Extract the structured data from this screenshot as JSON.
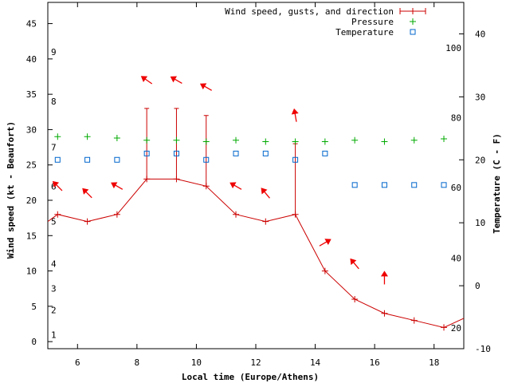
{
  "chart_data": {
    "type": "line",
    "xlabel": "Local time (Europe/Athens)",
    "ylabel_left": "Wind speed (kt - Beaufort)",
    "ylabel_right": "Temperature (C - F)",
    "xlim": [
      5,
      19
    ],
    "ylim_left": [
      -1,
      48
    ],
    "ylim_right": [
      -10,
      45
    ],
    "x_ticks": [
      6,
      8,
      10,
      12,
      14,
      16,
      18
    ],
    "y_ticks_left": [
      0,
      5,
      10,
      15,
      20,
      25,
      30,
      35,
      40,
      45
    ],
    "y_ticks_right": [
      -10,
      0,
      10,
      20,
      30,
      40
    ],
    "beaufort_labels": [
      {
        "label": "1",
        "kt": 1
      },
      {
        "label": "2",
        "kt": 4.5
      },
      {
        "label": "3",
        "kt": 7.5
      },
      {
        "label": "4",
        "kt": 11
      },
      {
        "label": "5",
        "kt": 17
      },
      {
        "label": "6",
        "kt": 22
      },
      {
        "label": "7",
        "kt": 27.5
      },
      {
        "label": "8",
        "kt": 34
      },
      {
        "label": "9",
        "kt": 41
      }
    ],
    "fahrenheit_labels": [
      {
        "label": "20",
        "c": -6.7
      },
      {
        "label": "40",
        "c": 4.4
      },
      {
        "label": "60",
        "c": 15.6
      },
      {
        "label": "80",
        "c": 26.7
      },
      {
        "label": "100",
        "c": 37.8
      }
    ],
    "legend": [
      "Wind speed, gusts, and direction",
      "Pressure",
      "Temperature"
    ],
    "legend_position": "top-right",
    "series": [
      {
        "name": "Wind speed, gusts, and direction",
        "color": "#cc0000",
        "x": [
          5,
          5.33,
          6.33,
          7.33,
          8.33,
          9.33,
          10.33,
          11.33,
          12.33,
          13.33,
          14.33,
          15.33,
          16.33,
          17.33,
          18.33,
          19
        ],
        "values": [
          17,
          18,
          17,
          18,
          23,
          23,
          22,
          18,
          17,
          18,
          10,
          6,
          4,
          3,
          2,
          3.3
        ],
        "gusts": [
          null,
          null,
          null,
          null,
          33,
          33,
          32,
          null,
          null,
          28,
          null,
          null,
          null,
          null,
          null,
          null
        ]
      },
      {
        "name": "Pressure",
        "color": "#00aa00",
        "x": [
          5.33,
          6.33,
          7.33,
          8.33,
          9.33,
          10.33,
          11.33,
          12.33,
          13.33,
          14.33,
          15.33,
          16.33,
          17.33,
          18.33
        ],
        "values": [
          29,
          29,
          28.8,
          28.5,
          28.5,
          28.3,
          28.5,
          28.3,
          28.3,
          28.3,
          28.5,
          28.3,
          28.5,
          28.7
        ]
      },
      {
        "name": "Temperature",
        "color": "#0066cc",
        "axis": "right",
        "x": [
          5.33,
          6.33,
          7.33,
          8.33,
          9.33,
          10.33,
          11.33,
          12.33,
          13.33,
          14.33,
          15.33,
          16.33,
          17.33,
          18.33
        ],
        "values": [
          20,
          20,
          20,
          21,
          21,
          20,
          21,
          21,
          20,
          21,
          16,
          16,
          16,
          16
        ]
      }
    ],
    "wind_direction": {
      "color": "#ee0000",
      "marks": [
        {
          "x": 5.33,
          "y_kt": 22,
          "to_deg": 315
        },
        {
          "x": 6.33,
          "y_kt": 21,
          "to_deg": 315
        },
        {
          "x": 7.33,
          "y_kt": 22,
          "to_deg": 300
        },
        {
          "x": 8.33,
          "y_kt": 37,
          "to_deg": 305
        },
        {
          "x": 9.33,
          "y_kt": 37,
          "to_deg": 300
        },
        {
          "x": 10.33,
          "y_kt": 36,
          "to_deg": 300
        },
        {
          "x": 11.33,
          "y_kt": 22,
          "to_deg": 300
        },
        {
          "x": 12.33,
          "y_kt": 21,
          "to_deg": 320
        },
        {
          "x": 13.33,
          "y_kt": 32,
          "to_deg": 350
        },
        {
          "x": 14.33,
          "y_kt": 14,
          "to_deg": 60
        },
        {
          "x": 15.33,
          "y_kt": 11,
          "to_deg": 320
        },
        {
          "x": 16.33,
          "y_kt": 9,
          "to_deg": 0
        }
      ]
    }
  }
}
